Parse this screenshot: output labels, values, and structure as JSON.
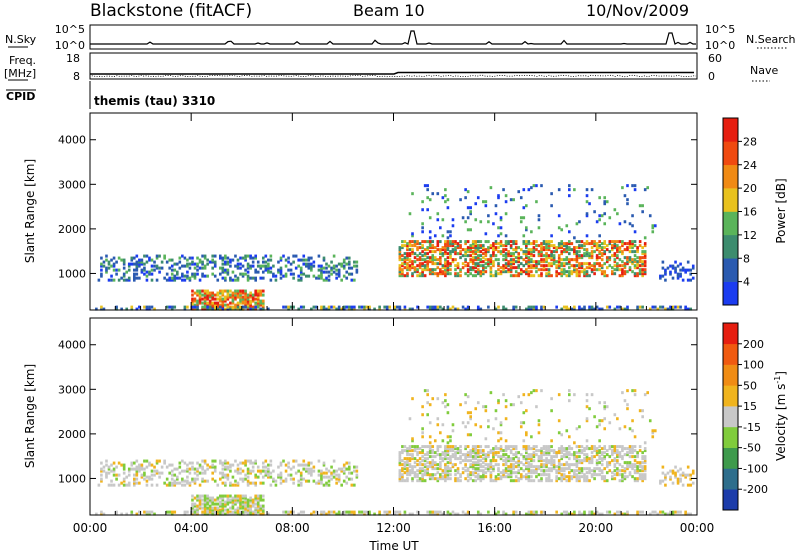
{
  "header": {
    "station": "Blackstone (fitACF)",
    "beam": "Beam 10",
    "date": "10/Nov/2009"
  },
  "top_panels": {
    "nsky_label": "N.Sky",
    "nsky_ticks": [
      "10^5",
      "10^0"
    ],
    "nsearch_label": "N.Search",
    "nsearch_ticks": [
      "10^5",
      "10^0"
    ],
    "freq_label": "Freq.",
    "freq_unit": "[MHz]",
    "freq_ticks": [
      "18",
      "8"
    ],
    "nave_label": "Nave",
    "nave_ticks": [
      "60",
      "0"
    ],
    "cpid_label": "CPID",
    "cpid_value": "themis (tau) 3310"
  },
  "chart_data": [
    {
      "type": "heatmap",
      "name": "power-panel",
      "ylabel": "Slant Range [km]",
      "ylim": [
        180,
        4600
      ],
      "yticks": [
        1000,
        2000,
        3000,
        4000
      ],
      "xlim": [
        0,
        24
      ],
      "xticks": [
        "00:00",
        "04:00",
        "08:00",
        "12:00",
        "16:00",
        "20:00",
        "00:00"
      ],
      "colorbar": {
        "label": "Power [dB]",
        "levels": [
          "4",
          "8",
          "12",
          "16",
          "20",
          "24",
          "28"
        ],
        "colors": [
          "#1b3cf0",
          "#2a5ab0",
          "#3c8c6e",
          "#5ab45a",
          "#e8c21e",
          "#f08a14",
          "#f04a10",
          "#e61e10"
        ]
      }
    },
    {
      "type": "heatmap",
      "name": "velocity-panel",
      "ylabel": "Slant Range [km]",
      "ylim": [
        180,
        4600
      ],
      "yticks": [
        1000,
        2000,
        3000,
        4000
      ],
      "xlim": [
        0,
        24
      ],
      "xticks": [
        "00:00",
        "04:00",
        "08:00",
        "12:00",
        "16:00",
        "20:00",
        "00:00"
      ],
      "xlabel": "Time UT",
      "colorbar": {
        "label": "Velocity [m s",
        "label_sup": "-1",
        "label_end": "]",
        "levels": [
          "200",
          "100",
          "50",
          "15",
          "-15",
          "-50",
          "-100",
          "-200"
        ],
        "colors": [
          "#1c3caa",
          "#2e6e8c",
          "#3e9a4c",
          "#80cc3c",
          "#c8c8c8",
          "#f0b41e",
          "#f08c14",
          "#f05a10",
          "#e61e10"
        ]
      }
    }
  ]
}
